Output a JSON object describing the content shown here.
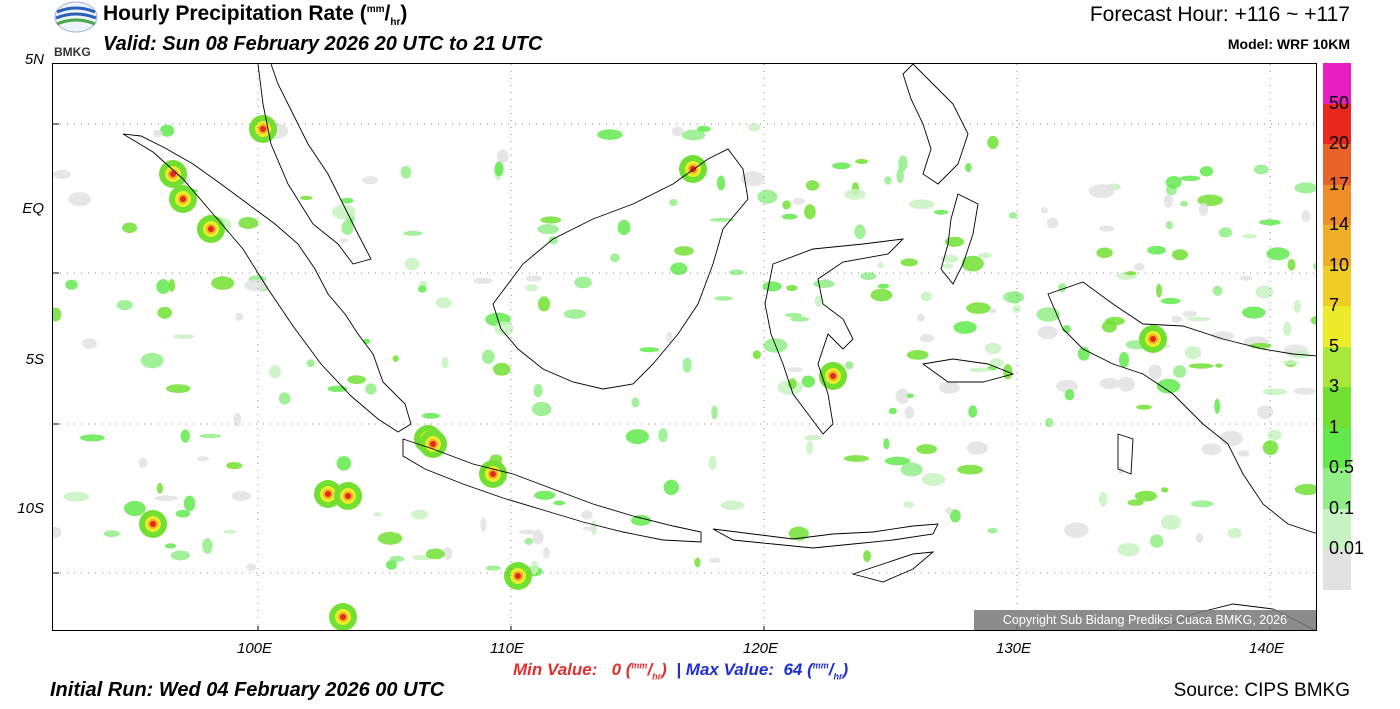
{
  "header": {
    "title_main": "Hourly Precipitation Rate (",
    "title_unit_num": "mm",
    "title_unit_slash": "/",
    "title_unit_den": "hr",
    "title_close": ")",
    "valid": "Valid: Sun 08 February 2026 20 UTC to 21 UTC",
    "forecast_hour": "Forecast Hour: +116 ~ +117",
    "model": "Model: WRF 10KM"
  },
  "logo": {
    "text": "BMKG",
    "icon": "bmkg-logo-icon"
  },
  "colorbar": {
    "labels": [
      "50",
      "20",
      "17",
      "14",
      "10",
      "7",
      "5",
      "3",
      "1",
      "0.5",
      "0.1",
      "0.01"
    ],
    "colors": [
      "#e81fc0",
      "#e8281e",
      "#e8622a",
      "#ef8e28",
      "#efae28",
      "#f0cd25",
      "#ecec2a",
      "#a8e839",
      "#72e032",
      "#62ea4c",
      "#92ef88",
      "#c8f3c2",
      "#e2e2e2"
    ]
  },
  "axes": {
    "lat_labels": [
      "5N",
      "EQ",
      "5S",
      "10S"
    ],
    "lon_labels": [
      "100E",
      "110E",
      "120E",
      "130E",
      "140E"
    ]
  },
  "footer": {
    "min_label": "Min Value:",
    "min_value": "0",
    "separator": "|",
    "max_label": "Max Value:",
    "max_value": "64",
    "unit_num": "mm",
    "unit_den": "hr",
    "initial_run": "Initial Run: Wed 04 February 2026 00 UTC",
    "source": "Source: CIPS BMKG",
    "copyright": "Copyright Sub Bidang Prediksi Cuaca BMKG, 2026"
  }
}
